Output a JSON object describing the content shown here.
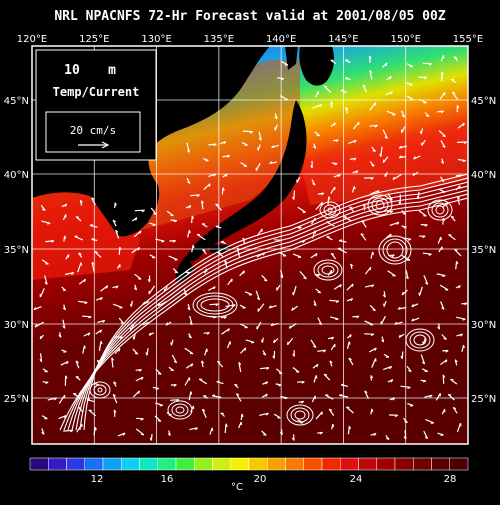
{
  "title": "NRL NPACNFS 72-Hr Forecast valid at 2001/08/05 00Z",
  "depth": {
    "value": "10",
    "unit": "m"
  },
  "field_label": "Temp/Current",
  "scale_vector": {
    "label": "20 cm/s"
  },
  "lon_ticks": [
    "120°E",
    "125°E",
    "130°E",
    "135°E",
    "140°E",
    "145°E",
    "150°E",
    "155°E"
  ],
  "lat_ticks": [
    "45°N",
    "40°N",
    "35°N",
    "30°N",
    "25°N"
  ],
  "colorbar": {
    "unit": "°C",
    "tick_labels": [
      "12",
      "16",
      "20",
      "24",
      "28"
    ],
    "colors": [
      "#2a0a7a",
      "#3a1ac0",
      "#2a3ae0",
      "#1a70f0",
      "#10a0f8",
      "#10d0f0",
      "#10e8c0",
      "#20f080",
      "#40f040",
      "#90f020",
      "#d0f010",
      "#f8f000",
      "#f8c800",
      "#f8a000",
      "#f87800",
      "#f85000",
      "#f02800",
      "#e01010",
      "#c00808",
      "#a00000",
      "#880000",
      "#700000",
      "#5a0000",
      "#4a0000"
    ]
  },
  "colors": {
    "background": "#000000",
    "land": "#000000",
    "cold_water": "#1c3ad8",
    "warm_water": "#6a0000",
    "vectors": "#ffffff"
  }
}
